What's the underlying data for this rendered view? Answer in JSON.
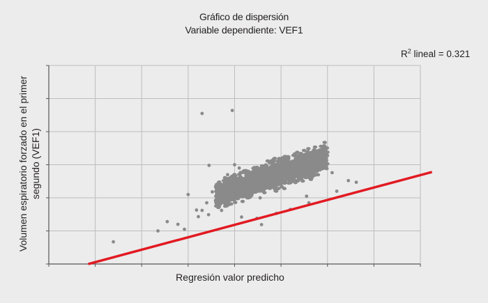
{
  "chart_data": {
    "type": "scatter",
    "title": "Gráfico de dispersión",
    "subtitle": "Variable dependiente: VEF1",
    "xlabel": "Regresión valor predicho",
    "ylabel": "Volumen espiratorio forzado  en el primer segundo (VEF1)",
    "annotation": {
      "prefix": "R",
      "sup": "2",
      "text": " lineal = 0.321"
    },
    "xlim": [
      0,
      8
    ],
    "ylim": [
      0,
      6
    ],
    "x_gridlines": [
      1,
      2,
      3,
      4,
      5,
      6,
      7
    ],
    "y_gridlines": [
      1,
      2,
      3,
      4,
      5
    ],
    "grid": true,
    "tick_labels_shown": false,
    "colors": {
      "points": "#8a8a8a",
      "regression_line": "#e21a22",
      "grid": "#bdbdbd",
      "axis": "#555555",
      "background": "#ececec"
    },
    "regression_line": {
      "x": [
        0.85,
        8.25
      ],
      "y": [
        0.0,
        2.78
      ]
    },
    "points": [
      {
        "x": 1.39,
        "y": 0.67
      },
      {
        "x": 3.3,
        "y": 4.55
      },
      {
        "x": 3.45,
        "y": 2.98
      },
      {
        "x": 3.0,
        "y": 2.1
      },
      {
        "x": 3.95,
        "y": 4.64
      },
      {
        "x": 3.44,
        "y": 1.49
      },
      {
        "x": 3.4,
        "y": 1.85
      },
      {
        "x": 4.48,
        "y": 1.38
      },
      {
        "x": 4.58,
        "y": 1.19
      },
      {
        "x": 4.0,
        "y": 3.0
      },
      {
        "x": 2.35,
        "y": 1.0
      },
      {
        "x": 2.55,
        "y": 1.28
      },
      {
        "x": 2.78,
        "y": 1.2
      },
      {
        "x": 3.18,
        "y": 1.63
      },
      {
        "x": 3.3,
        "y": 1.62
      },
      {
        "x": 3.22,
        "y": 1.43
      },
      {
        "x": 2.92,
        "y": 1.05
      },
      {
        "x": 3.65,
        "y": 1.78
      },
      {
        "x": 3.72,
        "y": 1.62
      },
      {
        "x": 4.15,
        "y": 1.42
      },
      {
        "x": 4.9,
        "y": 1.53
      },
      {
        "x": 4.75,
        "y": 3.06
      },
      {
        "x": 5.05,
        "y": 3.15
      },
      {
        "x": 5.3,
        "y": 2.98
      },
      {
        "x": 5.53,
        "y": 2.96
      },
      {
        "x": 6.1,
        "y": 2.76
      },
      {
        "x": 6.62,
        "y": 2.47
      },
      {
        "x": 6.45,
        "y": 2.52
      },
      {
        "x": 5.85,
        "y": 3.06
      },
      {
        "x": 5.55,
        "y": 2.05
      },
      {
        "x": 4.66,
        "y": 2.9
      },
      {
        "x": 3.85,
        "y": 2.7
      },
      {
        "x": 3.52,
        "y": 2.18
      },
      {
        "x": 6.2,
        "y": 2.2
      },
      {
        "x": 5.6,
        "y": 1.85
      },
      {
        "x": 5.2,
        "y": 1.65
      },
      {
        "x": 4.1,
        "y": 2.9
      },
      {
        "x": 4.55,
        "y": 2.0
      }
    ],
    "point_cloud": {
      "x_range": [
        3.6,
        6.0
      ],
      "y_center_at_x_min": 2.08,
      "y_slope": 0.48,
      "y_spread": 0.58
    }
  }
}
